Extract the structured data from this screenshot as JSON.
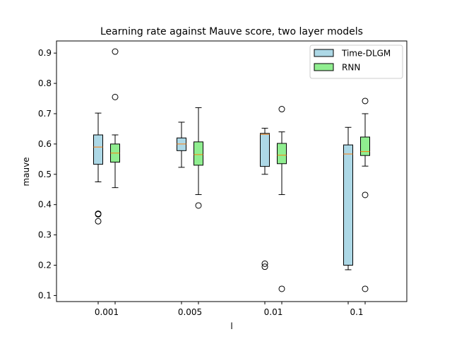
{
  "chart_data": {
    "type": "box",
    "title": "Learning rate against Mauve score, two layer models",
    "xlabel": "l",
    "ylabel": "mauve",
    "categories": [
      "0.001",
      "0.005",
      "0.01",
      "0.1"
    ],
    "ylim": [
      0.08,
      0.94
    ],
    "yticks": [
      0.1,
      0.2,
      0.3,
      0.4,
      0.5,
      0.6,
      0.7,
      0.8,
      0.9
    ],
    "ytick_labels": [
      "0.1",
      "0.2",
      "0.3",
      "0.4",
      "0.5",
      "0.6",
      "0.7",
      "0.8",
      "0.9"
    ],
    "grid": false,
    "legend_position": "upper right",
    "series": [
      {
        "name": "Time-DLGM",
        "color": "#add8e6",
        "boxes": [
          {
            "whislo": 0.475,
            "q1": 0.533,
            "med": 0.59,
            "q3": 0.63,
            "whishi": 0.702,
            "fliers": [
              0.37,
              0.368,
              0.345
            ]
          },
          {
            "whislo": 0.523,
            "q1": 0.578,
            "med": 0.6,
            "q3": 0.62,
            "whishi": 0.672,
            "fliers": []
          },
          {
            "whislo": 0.5,
            "q1": 0.526,
            "med": 0.632,
            "q3": 0.635,
            "whishi": 0.652,
            "fliers": [
              0.205,
              0.195
            ]
          },
          {
            "whislo": 0.185,
            "q1": 0.2,
            "med": 0.567,
            "q3": 0.597,
            "whishi": 0.655,
            "fliers": []
          }
        ]
      },
      {
        "name": "RNN",
        "color": "#90ee90",
        "boxes": [
          {
            "whislo": 0.456,
            "q1": 0.54,
            "med": 0.57,
            "q3": 0.6,
            "whishi": 0.63,
            "fliers": [
              0.905,
              0.755
            ]
          },
          {
            "whislo": 0.433,
            "q1": 0.53,
            "med": 0.565,
            "q3": 0.607,
            "whishi": 0.72,
            "fliers": [
              0.397
            ]
          },
          {
            "whislo": 0.433,
            "q1": 0.535,
            "med": 0.563,
            "q3": 0.602,
            "whishi": 0.64,
            "fliers": [
              0.715,
              0.122
            ]
          },
          {
            "whislo": 0.527,
            "q1": 0.562,
            "med": 0.575,
            "q3": 0.623,
            "whishi": 0.7,
            "fliers": [
              0.742,
              0.432,
              0.122
            ]
          }
        ]
      }
    ]
  }
}
